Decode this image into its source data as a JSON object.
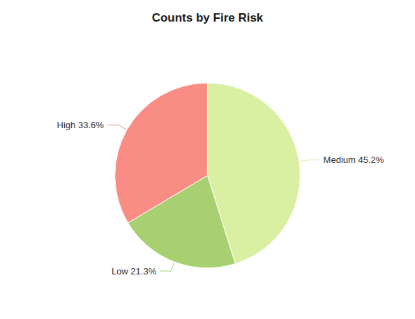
{
  "chart_data": {
    "type": "pie",
    "title": "Counts by Fire Risk",
    "categories": [
      "Medium 45.2%",
      "Low 21.3%",
      "High 33.6%"
    ],
    "values": [
      45.2,
      21.3,
      33.6
    ],
    "colors": [
      "#d9f0a3",
      "#a8d070",
      "#f98c85"
    ]
  }
}
